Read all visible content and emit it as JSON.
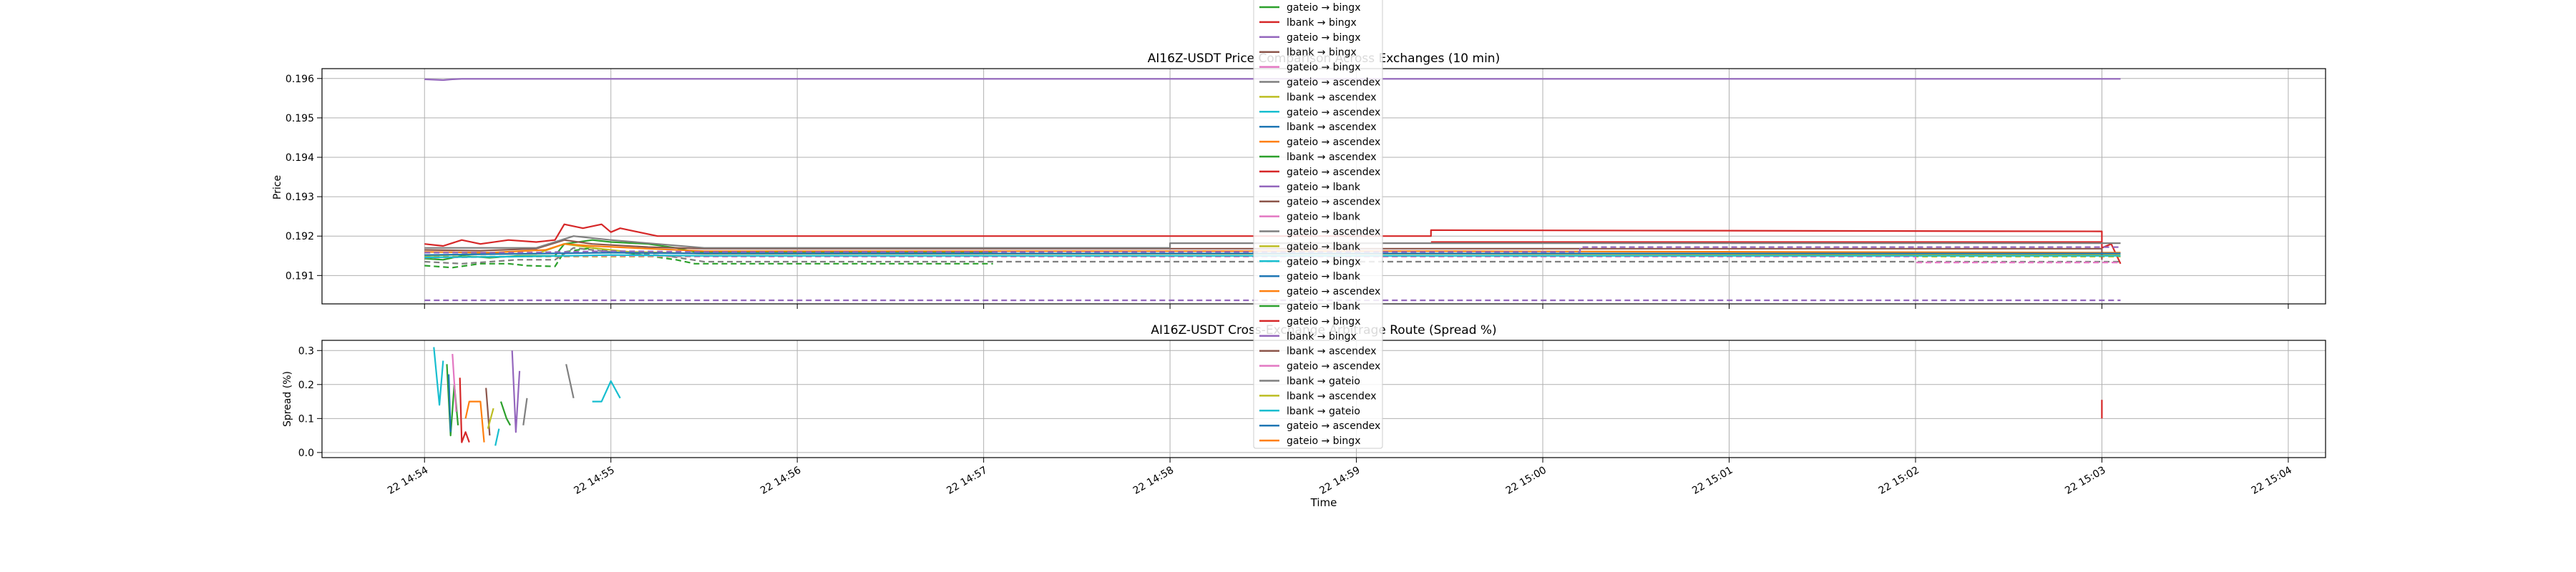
{
  "chart_data": [
    {
      "type": "line",
      "title": "AI16Z-USDT Price Comparison Across Exchanges (10 min)",
      "xlabel": "",
      "ylabel": "Price",
      "ylim": [
        0.19028,
        0.19625
      ],
      "xlim_minutes": [
        -0.55,
        10.2
      ],
      "grid": true,
      "yticks": [
        0.191,
        0.192,
        0.193,
        0.194,
        0.195,
        0.196
      ],
      "ytick_labels": [
        "0.191",
        "0.192",
        "0.193",
        "0.194",
        "0.195",
        "0.196"
      ],
      "series": [
        {
          "color": "#9467bd",
          "dash": "solid",
          "x": [
            0.0,
            0.1,
            0.15,
            0.2,
            9.1
          ],
          "y": [
            0.19598,
            0.19596,
            0.19598,
            0.19599,
            0.19599
          ]
        },
        {
          "color": "#9467bd",
          "dash": "dashed",
          "x": [
            0.0,
            9.1
          ],
          "y": [
            0.19037,
            0.19037
          ]
        },
        {
          "color": "#d62728",
          "dash": "solid",
          "x": [
            0.0,
            0.1,
            0.2,
            0.3,
            0.45,
            0.6,
            0.7,
            0.75,
            0.85,
            0.95,
            1.0,
            1.05,
            1.15,
            1.25,
            1.35,
            1.45,
            5.4,
            5.4,
            9.0,
            9.0,
            9.05,
            9.1
          ],
          "y": [
            0.1918,
            0.19175,
            0.1919,
            0.1918,
            0.1919,
            0.19185,
            0.1919,
            0.1923,
            0.1922,
            0.1923,
            0.1921,
            0.1922,
            0.1921,
            0.192,
            0.192,
            0.192,
            0.192,
            0.19215,
            0.19212,
            0.1917,
            0.1918,
            0.1913
          ]
        },
        {
          "color": "#d62728",
          "dash": "solid",
          "x": [
            5.4,
            9.0
          ],
          "y": [
            0.19185,
            0.19185
          ]
        },
        {
          "color": "#2ca02c",
          "dash": "solid",
          "x": [
            0.0,
            0.1,
            0.2,
            0.35,
            0.5,
            0.7,
            0.75,
            0.9,
            1.0,
            1.2,
            1.35,
            1.45,
            2.0,
            3.05
          ],
          "y": [
            0.19143,
            0.1914,
            0.1915,
            0.19145,
            0.1915,
            0.1915,
            0.1918,
            0.1919,
            0.19185,
            0.1918,
            0.1917,
            0.1916,
            0.1916,
            0.1916
          ]
        },
        {
          "color": "#2ca02c",
          "dash": "dashed",
          "x": [
            0.0,
            0.15,
            0.3,
            0.45,
            0.55,
            0.7,
            0.75,
            0.9,
            1.05,
            1.2,
            1.35,
            1.45,
            2.0,
            3.05
          ],
          "y": [
            0.19125,
            0.1912,
            0.1913,
            0.1913,
            0.19125,
            0.19123,
            0.1916,
            0.1917,
            0.1916,
            0.1915,
            0.1914,
            0.1913,
            0.1913,
            0.1913
          ]
        },
        {
          "color": "#bcbd22",
          "dash": "solid",
          "x": [
            0.0,
            0.3,
            0.6,
            0.75,
            0.9,
            1.1,
            1.3,
            1.5,
            5.4,
            9.1
          ],
          "y": [
            0.1915,
            0.19155,
            0.19155,
            0.1918,
            0.1917,
            0.1916,
            0.19158,
            0.19155,
            0.19155,
            0.19152
          ]
        },
        {
          "color": "#bcbd22",
          "dash": "dashed",
          "x": [
            0.0,
            9.1
          ],
          "y": [
            0.19148,
            0.19148
          ]
        },
        {
          "color": "#ff7f0e",
          "dash": "solid",
          "x": [
            0.0,
            0.35,
            0.65,
            0.75,
            0.9,
            1.2,
            1.5,
            5.4,
            9.1
          ],
          "y": [
            0.1916,
            0.19158,
            0.19165,
            0.1918,
            0.19175,
            0.19168,
            0.19162,
            0.19162,
            0.19158
          ]
        },
        {
          "color": "#8c564b",
          "dash": "solid",
          "x": [
            0.0,
            0.3,
            0.6,
            0.75,
            0.9,
            1.2,
            1.5,
            5.4,
            9.0,
            9.0
          ],
          "y": [
            0.19165,
            0.19163,
            0.19168,
            0.1919,
            0.1918,
            0.19172,
            0.19168,
            0.19168,
            0.19168,
            0.1914
          ]
        },
        {
          "color": "#7f7f7f",
          "dash": "solid",
          "x": [
            0.0,
            0.3,
            0.6,
            0.8,
            1.0,
            1.5,
            4.0,
            4.0,
            9.1
          ],
          "y": [
            0.1917,
            0.1917,
            0.1917,
            0.192,
            0.1919,
            0.1917,
            0.1917,
            0.19182,
            0.19182
          ]
        },
        {
          "color": "#7f7f7f",
          "dash": "dashed",
          "x": [
            0.0,
            0.2,
            0.5,
            0.7,
            0.8,
            1.0,
            1.3,
            1.5,
            9.1
          ],
          "y": [
            0.19135,
            0.1913,
            0.1914,
            0.1914,
            0.1917,
            0.1916,
            0.1915,
            0.19135,
            0.19135
          ]
        },
        {
          "color": "#e377c2",
          "dash": "dashed",
          "x": [
            0.0,
            0.5,
            1.0,
            1.5,
            8.0,
            8.0,
            9.1
          ],
          "y": [
            0.19145,
            0.19148,
            0.1915,
            0.19148,
            0.19148,
            0.19133,
            0.19133
          ]
        },
        {
          "color": "#1f77b4",
          "dash": "solid",
          "x": [
            0.0,
            0.5,
            1.0,
            1.5,
            9.1
          ],
          "y": [
            0.19152,
            0.19155,
            0.19158,
            0.19156,
            0.19156
          ]
        },
        {
          "color": "#17becf",
          "dash": "solid",
          "x": [
            0.0,
            0.5,
            1.0,
            1.5,
            9.1
          ],
          "y": [
            0.19146,
            0.19148,
            0.19152,
            0.1915,
            0.1915
          ]
        },
        {
          "color": "#9467bd",
          "dash": "dashed",
          "x": [
            0.0,
            0.5,
            1.0,
            1.5,
            6.2,
            6.2,
            9.1
          ],
          "y": [
            0.19158,
            0.19158,
            0.19162,
            0.1916,
            0.1916,
            0.19172,
            0.19172
          ]
        }
      ]
    },
    {
      "type": "line",
      "title": "AI16Z-USDT Cross-Exchange Arbitrage Route (Spread %)",
      "xlabel": "Time",
      "ylabel": "Spread (%)",
      "ylim": [
        -0.015,
        0.33
      ],
      "xlim_minutes": [
        -0.55,
        10.2
      ],
      "grid": true,
      "yticks": [
        0.0,
        0.1,
        0.2,
        0.3
      ],
      "ytick_labels": [
        "0.0",
        "0.1",
        "0.2",
        "0.3"
      ],
      "series": [
        {
          "color": "#17becf",
          "dash": "solid",
          "x": [
            0.05,
            0.08,
            0.1
          ],
          "y": [
            0.31,
            0.14,
            0.27
          ]
        },
        {
          "color": "#2ca02c",
          "dash": "solid",
          "x": [
            0.12,
            0.14,
            0.16,
            0.18
          ],
          "y": [
            0.26,
            0.05,
            0.2,
            0.08
          ]
        },
        {
          "color": "#e377c2",
          "dash": "solid",
          "x": [
            0.15,
            0.17
          ],
          "y": [
            0.29,
            0.12
          ]
        },
        {
          "color": "#1f77b4",
          "dash": "solid",
          "x": [
            0.13,
            0.14
          ],
          "y": [
            0.23,
            0.06
          ]
        },
        {
          "color": "#d62728",
          "dash": "solid",
          "x": [
            0.19,
            0.2,
            0.22,
            0.24
          ],
          "y": [
            0.22,
            0.03,
            0.06,
            0.03
          ]
        },
        {
          "color": "#ff7f0e",
          "dash": "solid",
          "x": [
            0.22,
            0.24,
            0.26,
            0.3,
            0.32
          ],
          "y": [
            0.1,
            0.15,
            0.15,
            0.15,
            0.03
          ]
        },
        {
          "color": "#8c564b",
          "dash": "solid",
          "x": [
            0.33,
            0.35
          ],
          "y": [
            0.19,
            0.05
          ]
        },
        {
          "color": "#bcbd22",
          "dash": "solid",
          "x": [
            0.34,
            0.37
          ],
          "y": [
            0.07,
            0.13
          ]
        },
        {
          "color": "#17becf",
          "dash": "solid",
          "x": [
            0.38,
            0.4
          ],
          "y": [
            0.02,
            0.07
          ]
        },
        {
          "color": "#2ca02c",
          "dash": "solid",
          "x": [
            0.41,
            0.44,
            0.46
          ],
          "y": [
            0.15,
            0.1,
            0.08
          ]
        },
        {
          "color": "#9467bd",
          "dash": "solid",
          "x": [
            0.47,
            0.49,
            0.51
          ],
          "y": [
            0.3,
            0.06,
            0.24
          ]
        },
        {
          "color": "#7f7f7f",
          "dash": "solid",
          "x": [
            0.53,
            0.55
          ],
          "y": [
            0.08,
            0.16
          ]
        },
        {
          "color": "#7f7f7f",
          "dash": "solid",
          "x": [
            0.76,
            0.8
          ],
          "y": [
            0.26,
            0.16
          ]
        },
        {
          "color": "#17becf",
          "dash": "solid",
          "x": [
            0.9,
            0.95,
            1.0,
            1.05
          ],
          "y": [
            0.15,
            0.15,
            0.21,
            0.16
          ]
        },
        {
          "color": "#d62728",
          "dash": "solid",
          "x": [
            9.0,
            9.0
          ],
          "y": [
            0.155,
            0.1
          ]
        }
      ]
    }
  ],
  "x_axis": {
    "ticks": [
      0,
      1,
      2,
      3,
      4,
      5,
      6,
      7,
      8,
      9,
      10
    ],
    "tick_labels": [
      "22 14:54",
      "22 14:55",
      "22 14:56",
      "22 14:57",
      "22 14:58",
      "22 14:59",
      "22 15:00",
      "22 15:01",
      "22 15:02",
      "22 15:03",
      "22 15:04"
    ]
  },
  "legend": {
    "placement": "upper-center",
    "entries": [
      {
        "label": "gateio → bingx",
        "color": "#2ca02c"
      },
      {
        "label": "lbank → bingx",
        "color": "#d62728"
      },
      {
        "label": "gateio → bingx",
        "color": "#9467bd"
      },
      {
        "label": "lbank → bingx",
        "color": "#8c564b"
      },
      {
        "label": "gateio → bingx",
        "color": "#e377c2"
      },
      {
        "label": "gateio → ascendex",
        "color": "#7f7f7f"
      },
      {
        "label": "lbank → ascendex",
        "color": "#bcbd22"
      },
      {
        "label": "gateio → ascendex",
        "color": "#17becf"
      },
      {
        "label": "lbank → ascendex",
        "color": "#1f77b4"
      },
      {
        "label": "gateio → ascendex",
        "color": "#ff7f0e"
      },
      {
        "label": "lbank → ascendex",
        "color": "#2ca02c"
      },
      {
        "label": "gateio → ascendex",
        "color": "#d62728"
      },
      {
        "label": "gateio → lbank",
        "color": "#9467bd"
      },
      {
        "label": "gateio → ascendex",
        "color": "#8c564b"
      },
      {
        "label": "gateio → lbank",
        "color": "#e377c2"
      },
      {
        "label": "gateio → ascendex",
        "color": "#7f7f7f"
      },
      {
        "label": "gateio → lbank",
        "color": "#bcbd22"
      },
      {
        "label": "gateio → bingx",
        "color": "#17becf"
      },
      {
        "label": "gateio → lbank",
        "color": "#1f77b4"
      },
      {
        "label": "gateio → ascendex",
        "color": "#ff7f0e"
      },
      {
        "label": "gateio → lbank",
        "color": "#2ca02c"
      },
      {
        "label": "gateio → bingx",
        "color": "#d62728"
      },
      {
        "label": "lbank → bingx",
        "color": "#9467bd"
      },
      {
        "label": "lbank → ascendex",
        "color": "#8c564b"
      },
      {
        "label": "gateio → ascendex",
        "color": "#e377c2"
      },
      {
        "label": "lbank → gateio",
        "color": "#7f7f7f"
      },
      {
        "label": "lbank → ascendex",
        "color": "#bcbd22"
      },
      {
        "label": "lbank → gateio",
        "color": "#17becf"
      },
      {
        "label": "gateio → ascendex",
        "color": "#1f77b4"
      },
      {
        "label": "gateio → bingx",
        "color": "#ff7f0e"
      }
    ]
  }
}
